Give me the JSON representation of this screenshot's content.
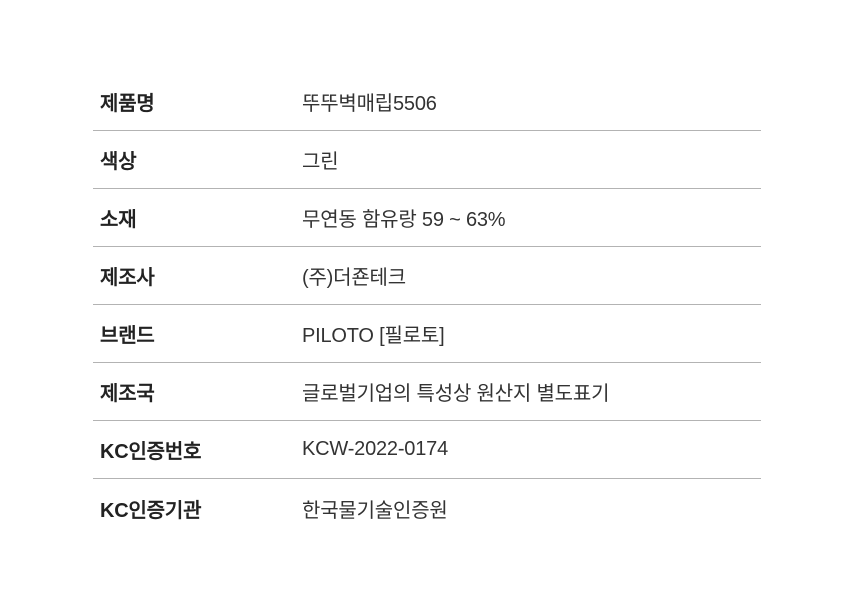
{
  "table": {
    "type": "product-specification",
    "rows": [
      {
        "label": "제품명",
        "value": "뚜뚜벽매립5506"
      },
      {
        "label": "색상",
        "value": "그린"
      },
      {
        "label": "소재",
        "value": "무연동 함유랑 59 ~ 63%"
      },
      {
        "label": "제조사",
        "value": "(주)더죤테크"
      },
      {
        "label": "브랜드",
        "value": "PILOTO [필로토]"
      },
      {
        "label": "제조국",
        "value": "글로벌기업의 특성상 원산지 별도표기"
      },
      {
        "label": "KC인증번호",
        "value": "KCW-2022-0174"
      },
      {
        "label": "KC인증기관",
        "value": "한국물기술인증원"
      }
    ]
  },
  "colors": {
    "background": "#ffffff",
    "label_text": "#222222",
    "value_text": "#333333",
    "divider": "#b3b3b3"
  }
}
